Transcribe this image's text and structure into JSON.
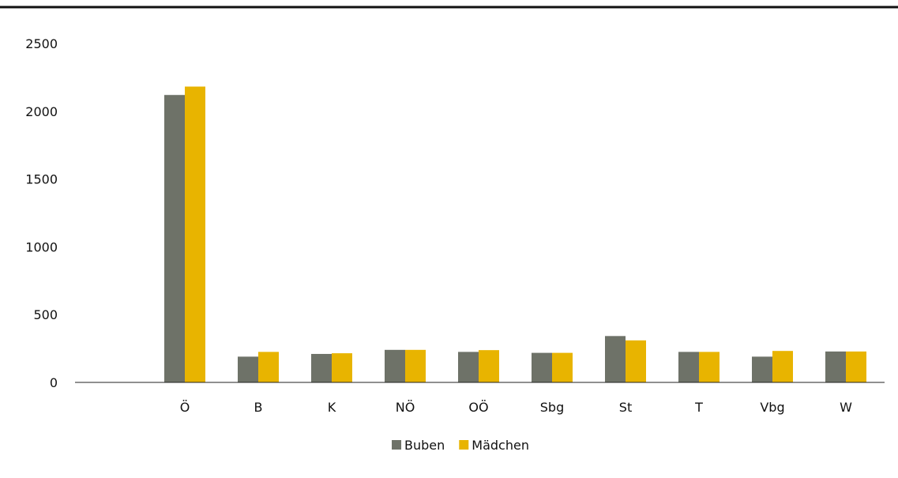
{
  "chart_data": {
    "type": "bar",
    "title": "",
    "xlabel": "",
    "ylabel": "",
    "categories": [
      "Ö",
      "B",
      "K",
      "NÖ",
      "OÖ",
      "Sbg",
      "St",
      "T",
      "Vbg",
      "W"
    ],
    "series": [
      {
        "name": "Buben",
        "color": "#6e7268",
        "values": [
          2120,
          190,
          210,
          240,
          225,
          218,
          342,
          225,
          190,
          228
        ]
      },
      {
        "name": "Mädchen",
        "color": "#e8b400",
        "values": [
          2182,
          225,
          215,
          240,
          238,
          218,
          310,
          225,
          232,
          228
        ]
      }
    ],
    "ylim": [
      0,
      2500
    ],
    "yticks": [
      0,
      500,
      1000,
      1500,
      2000,
      2500
    ],
    "grid": false,
    "legend": "bottom-center"
  }
}
